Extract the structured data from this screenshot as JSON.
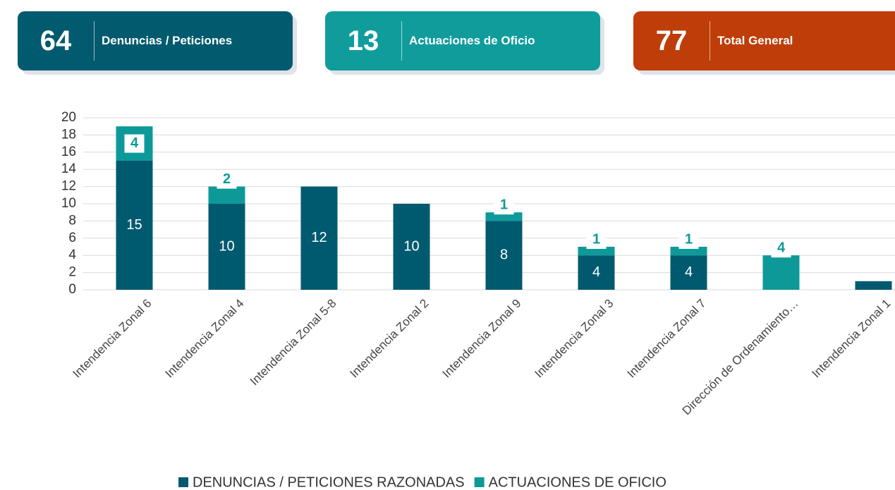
{
  "kpis": [
    {
      "value": "64",
      "label": "Denuncias / Peticiones",
      "color": "#025a6e"
    },
    {
      "value": "13",
      "label": "Actuaciones de Oficio",
      "color": "#119c9c"
    },
    {
      "value": "77",
      "label": "Total General",
      "color": "#bf3d08"
    }
  ],
  "chart_data": {
    "type": "stacked_bar",
    "categories": [
      "Intendencia Zonal 6",
      "Intendencia Zonal 4",
      "Intendencia Zonal 5-8",
      "Intendencia Zonal 2",
      "Intendencia Zonal 9",
      "Intendencia Zonal 3",
      "Intendencia Zonal 7",
      "Dirección de Ordenamiento…",
      "Intendencia Zonal 1"
    ],
    "series": [
      {
        "name": "DENUNCIAS / PETICIONES RAZONADAS",
        "color": "#005a6f",
        "values": [
          15,
          10,
          12,
          10,
          8,
          4,
          4,
          null,
          1
        ]
      },
      {
        "name": "ACTUACIONES DE OFICIO",
        "color": "#0e9999",
        "values": [
          4,
          2,
          null,
          null,
          1,
          1,
          1,
          4,
          null
        ]
      }
    ],
    "ylim": [
      0,
      20
    ],
    "yticks": [
      0,
      2,
      4,
      6,
      8,
      10,
      12,
      14,
      16,
      18,
      20
    ],
    "grid": true,
    "legend": "bottom"
  }
}
